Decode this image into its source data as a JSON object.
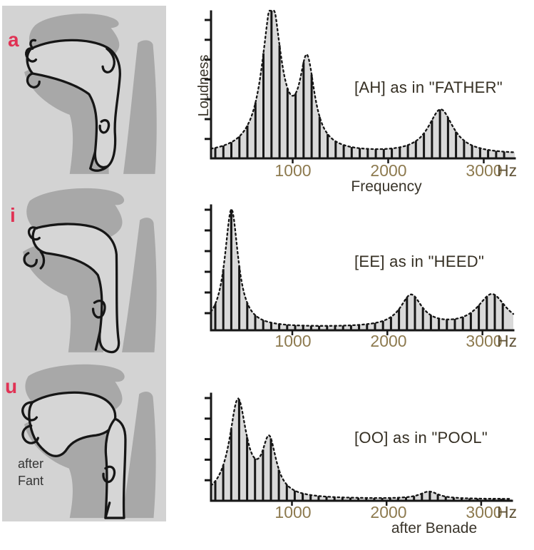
{
  "figure": {
    "anatomy": {
      "vowels": [
        "a",
        "i",
        "u"
      ],
      "credit_lines": [
        "after",
        "Fant"
      ],
      "vowel_color": "#e03254"
    },
    "colors": {
      "panel_gray": "#d3d3d3",
      "tissue_gray": "#a8a8a8",
      "spectrum_fill": "#d9d9d9",
      "ink": "#161616",
      "tick_number": "#8d7a4f",
      "vowel_red": "#e03254"
    }
  },
  "chart_data": [
    {
      "type": "bar",
      "id": "ah",
      "label": "[AH] as in \"FATHER\"",
      "ylabel": "Loudness",
      "xlabel": "Frequency",
      "x_unit": "Hz",
      "xtick_hz": [
        1000,
        2000,
        3000
      ],
      "xtick_labels": [
        "1000",
        "2000",
        "3000"
      ],
      "freq_range_hz": [
        145,
        3325
      ],
      "bar_start_hz": 190,
      "bar_spacing_hz": 84,
      "amp_floor": 0.025,
      "y_tick_count": 7,
      "formants": [
        {
          "freq_hz": 780,
          "rel_amp": 1.0,
          "bandwidth_hz": 120
        },
        {
          "freq_hz": 1150,
          "rel_amp": 0.58,
          "bandwidth_hz": 95
        },
        {
          "freq_hz": 2550,
          "rel_amp": 0.3,
          "bandwidth_hz": 160
        }
      ]
    },
    {
      "type": "bar",
      "id": "ee",
      "label": "[EE] as in \"HEED\"",
      "x_unit": "Hz",
      "xtick_hz": [
        1000,
        2000,
        3000
      ],
      "xtick_labels": [
        "1000",
        "2000",
        "3000"
      ],
      "freq_range_hz": [
        145,
        3325
      ],
      "bar_start_hz": 190,
      "bar_spacing_hz": 84,
      "amp_floor": 0.02,
      "y_tick_count": 6,
      "formants": [
        {
          "freq_hz": 360,
          "rel_amp": 0.97,
          "bandwidth_hz": 85
        },
        {
          "freq_hz": 2250,
          "rel_amp": 0.26,
          "bandwidth_hz": 140
        },
        {
          "freq_hz": 3100,
          "rel_amp": 0.27,
          "bandwidth_hz": 185
        }
      ]
    },
    {
      "type": "bar",
      "id": "oo",
      "label": "[OO] as in \"POOL\"",
      "caption": "after Benade",
      "x_unit": "Hz",
      "xtick_hz": [
        1000,
        2000,
        3000
      ],
      "xtick_labels": [
        "1000",
        "2000",
        "3000"
      ],
      "freq_range_hz": [
        145,
        3325
      ],
      "bar_start_hz": 190,
      "bar_spacing_hz": 84,
      "amp_floor": 0.015,
      "y_tick_count": 5,
      "formants": [
        {
          "freq_hz": 430,
          "rel_amp": 0.93,
          "bandwidth_hz": 110
        },
        {
          "freq_hz": 760,
          "rel_amp": 0.52,
          "bandwidth_hz": 90
        },
        {
          "freq_hz": 2450,
          "rel_amp": 0.07,
          "bandwidth_hz": 120
        }
      ]
    }
  ]
}
